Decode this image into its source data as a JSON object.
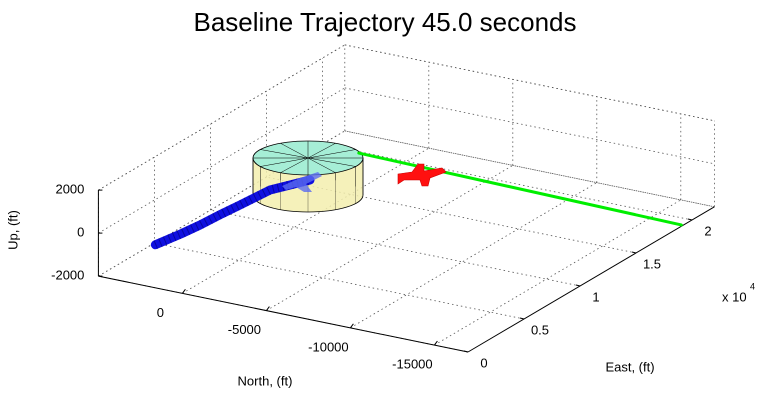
{
  "chart_data": {
    "type": "line3d",
    "title": "Baseline Trajectory 45.0 seconds",
    "xlabel": "North, (ft)",
    "ylabel": "East, (ft)",
    "zlabel": "Up, (ft)",
    "y_multiplier": {
      "label": "x 10",
      "exponent": "4"
    },
    "xlim": [
      -17000,
      5000
    ],
    "xticks": [
      0,
      -5000,
      -10000,
      -15000
    ],
    "ylim": [
      0,
      22000
    ],
    "yticks": [
      0,
      {
        "value": 5000,
        "label": "0.5"
      },
      {
        "value": 10000,
        "label": "1"
      },
      {
        "value": 15000,
        "label": "1.5"
      },
      {
        "value": 20000,
        "label": "2"
      }
    ],
    "zlim": [
      -2000,
      2000
    ],
    "zticks": [
      -2000,
      0,
      2000
    ],
    "grid": true,
    "series": [
      {
        "color": "#1010e0",
        "east": [
          0,
          1800,
          3255,
          5000,
          6423,
          8802,
          10848
        ],
        "north": [
          1610,
          1300,
          1120,
          1000,
          855,
          652,
          -363
        ],
        "up": [
          0,
          0,
          0,
          0,
          0,
          0,
          0
        ]
      },
      {
        "color": "#00ee00",
        "east": [
          15000,
          19200
        ],
        "north": [
          -500,
          -16900
        ],
        "up": [
          0,
          -2000
        ]
      }
    ]
  }
}
